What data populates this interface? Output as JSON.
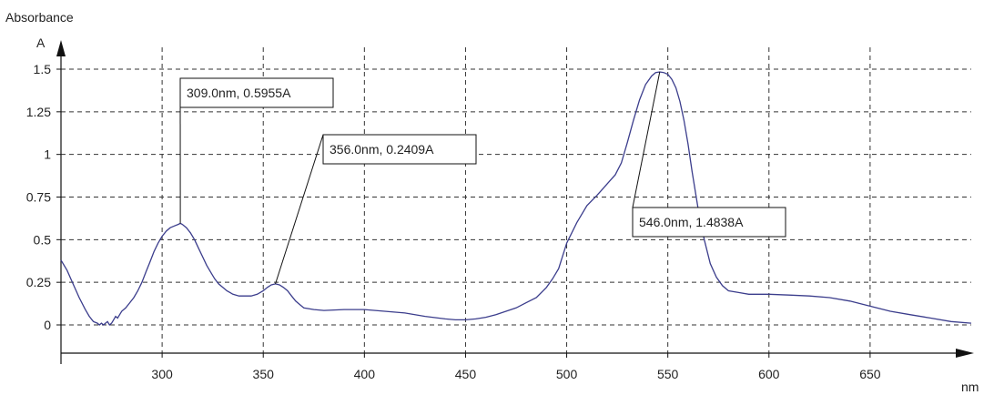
{
  "chart_data": {
    "type": "line",
    "title": "",
    "ylabel": "Absorbance",
    "yunit": "A",
    "xunit": "nm",
    "xlim": [
      250,
      700
    ],
    "ylim": [
      -0.1,
      1.6
    ],
    "grid": true,
    "x_ticks": [
      {
        "value": 300,
        "label": "300"
      },
      {
        "value": 350,
        "label": "350"
      },
      {
        "value": 400,
        "label": "400"
      },
      {
        "value": 450,
        "label": "450"
      },
      {
        "value": 500,
        "label": "500"
      },
      {
        "value": 550,
        "label": "550"
      },
      {
        "value": 600,
        "label": "600"
      },
      {
        "value": 650,
        "label": "650"
      }
    ],
    "y_ticks": [
      {
        "value": 0,
        "label": "0"
      },
      {
        "value": 0.25,
        "label": "0.25"
      },
      {
        "value": 0.5,
        "label": "0.5"
      },
      {
        "value": 0.75,
        "label": "0.75"
      },
      {
        "value": 1,
        "label": "1"
      },
      {
        "value": 1.25,
        "label": "1.25"
      },
      {
        "value": 1.5,
        "label": "1.5"
      }
    ],
    "series": [
      {
        "color": "#3b3d8c",
        "x": [
          250,
          253,
          256,
          259,
          262,
          264,
          266,
          268,
          269,
          270,
          271,
          272,
          273,
          274,
          275,
          276,
          277,
          278,
          279,
          280,
          282,
          284,
          286,
          288,
          290,
          292,
          294,
          296,
          298,
          300,
          302,
          304,
          306,
          308,
          309,
          310,
          312,
          314,
          316,
          318,
          320,
          322,
          324,
          326,
          328,
          330,
          332,
          335,
          338,
          341,
          344,
          347,
          350,
          352,
          354,
          356,
          358,
          360,
          362,
          364,
          366,
          368,
          370,
          375,
          380,
          390,
          400,
          410,
          420,
          430,
          440,
          445,
          450,
          455,
          460,
          465,
          470,
          475,
          480,
          485,
          490,
          493,
          496,
          500,
          505,
          510,
          515,
          518,
          521,
          524,
          527,
          530,
          533,
          536,
          539,
          542,
          544,
          546,
          548,
          550,
          552,
          554,
          556,
          558,
          560,
          562,
          565,
          568,
          571,
          574,
          577,
          580,
          585,
          590,
          600,
          610,
          620,
          630,
          640,
          650,
          660,
          670,
          680,
          690,
          700
        ],
        "y": [
          0.38,
          0.32,
          0.24,
          0.16,
          0.09,
          0.05,
          0.02,
          0.01,
          0.0,
          0.01,
          0.0,
          0.01,
          0.02,
          0.0,
          0.01,
          0.03,
          0.05,
          0.04,
          0.06,
          0.08,
          0.1,
          0.13,
          0.16,
          0.2,
          0.25,
          0.31,
          0.37,
          0.43,
          0.48,
          0.52,
          0.55,
          0.57,
          0.58,
          0.59,
          0.5955,
          0.59,
          0.57,
          0.54,
          0.5,
          0.45,
          0.4,
          0.35,
          0.31,
          0.27,
          0.24,
          0.22,
          0.2,
          0.18,
          0.17,
          0.17,
          0.17,
          0.18,
          0.2,
          0.22,
          0.235,
          0.2409,
          0.235,
          0.22,
          0.2,
          0.17,
          0.14,
          0.12,
          0.1,
          0.09,
          0.085,
          0.09,
          0.09,
          0.08,
          0.07,
          0.05,
          0.035,
          0.03,
          0.03,
          0.035,
          0.045,
          0.06,
          0.08,
          0.1,
          0.13,
          0.16,
          0.22,
          0.27,
          0.33,
          0.48,
          0.6,
          0.7,
          0.76,
          0.8,
          0.84,
          0.88,
          0.95,
          1.07,
          1.2,
          1.32,
          1.41,
          1.46,
          1.48,
          1.4838,
          1.48,
          1.47,
          1.44,
          1.39,
          1.31,
          1.2,
          1.06,
          0.9,
          0.68,
          0.5,
          0.36,
          0.28,
          0.23,
          0.2,
          0.19,
          0.18,
          0.18,
          0.175,
          0.17,
          0.16,
          0.14,
          0.11,
          0.08,
          0.06,
          0.04,
          0.02,
          0.01
        ]
      }
    ],
    "annotations": [
      {
        "x": 309.0,
        "y": 0.5955,
        "label": "309.0nm, 0.5955A"
      },
      {
        "x": 356.0,
        "y": 0.2409,
        "label": "356.0nm, 0.2409A"
      },
      {
        "x": 546.0,
        "y": 1.4838,
        "label": "546.0nm, 1.4838A"
      }
    ]
  }
}
